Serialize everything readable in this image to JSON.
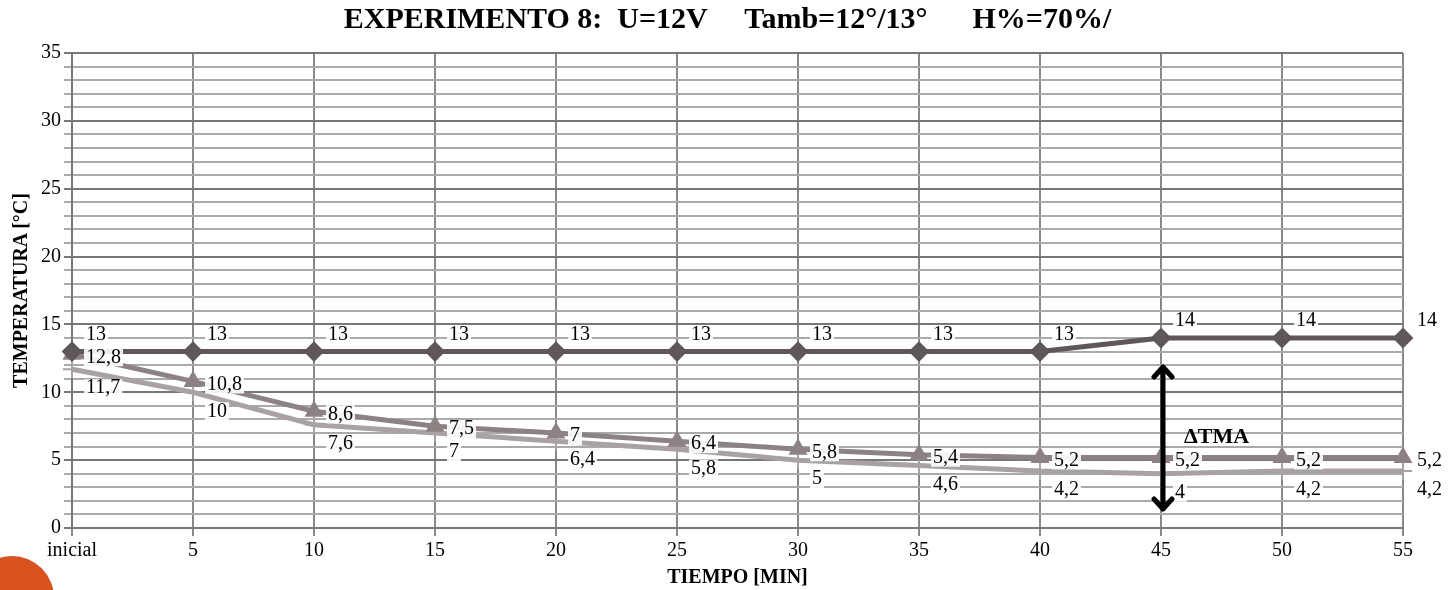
{
  "chart_data": {
    "type": "line",
    "title": "EXPERIMENTO 8:  U=12V     Tamb=12°/13°      H%=70%/",
    "xlabel": "TIEMPO [MIN]",
    "ylabel": "TEMPERATURA [°C]",
    "categories": [
      "inicial",
      "5",
      "10",
      "15",
      "20",
      "25",
      "30",
      "35",
      "40",
      "45",
      "50",
      "55"
    ],
    "series": [
      {
        "color": "#5f5758",
        "marker": "diamond",
        "values": [
          13,
          13,
          13,
          13,
          13,
          13,
          13,
          13,
          13,
          14,
          14,
          14
        ],
        "value_labels": [
          "13",
          "13",
          "13",
          "13",
          "13",
          "13",
          "13",
          "13",
          "13",
          "14",
          "14",
          "14"
        ]
      },
      {
        "color": "#8c8283",
        "marker": "triangle",
        "values": [
          12.8,
          10.8,
          8.6,
          7.5,
          7,
          6.4,
          5.8,
          5.4,
          5.2,
          5.2,
          5.2,
          5.2
        ],
        "value_labels": [
          "12,8",
          "10,8",
          "8,6",
          "7,5",
          "7",
          "6,4",
          "5,8",
          "5,4",
          "5,2",
          "5,2",
          "5,2",
          "5,2"
        ]
      },
      {
        "color": "#a8a2a2",
        "marker": "cross",
        "values": [
          11.7,
          10,
          7.6,
          7,
          6.4,
          5.8,
          5,
          4.6,
          4.2,
          4,
          4.2,
          4.2
        ],
        "value_labels": [
          "11,7",
          "10",
          "7,6",
          "7",
          "6,4",
          "5,8",
          "5",
          "4,6",
          "4,2",
          "4",
          "4,2",
          "4,2"
        ]
      }
    ],
    "ylim": [
      0,
      35
    ],
    "yticks": [
      0,
      {
        "value": 1,
        "label": null
      },
      {
        "value": 2,
        "label": null
      },
      {
        "value": 3,
        "label": null
      },
      {
        "value": 4,
        "label": null
      },
      5,
      {
        "value": 6,
        "label": null
      },
      {
        "value": 7,
        "label": null
      },
      {
        "value": 8,
        "label": null
      },
      {
        "value": 9,
        "label": null
      },
      10,
      {
        "value": 11,
        "label": null
      },
      {
        "value": 12,
        "label": null
      },
      {
        "value": 13,
        "label": null
      },
      {
        "value": 14,
        "label": null
      },
      15,
      {
        "value": 16,
        "label": null
      },
      {
        "value": 17,
        "label": null
      },
      {
        "value": 18,
        "label": null
      },
      {
        "value": 19,
        "label": null
      },
      20,
      {
        "value": 21,
        "label": null
      },
      {
        "value": 22,
        "label": null
      },
      {
        "value": 23,
        "label": null
      },
      {
        "value": 24,
        "label": null
      },
      25,
      {
        "value": 26,
        "label": null
      },
      {
        "value": 27,
        "label": null
      },
      {
        "value": 28,
        "label": null
      },
      {
        "value": 29,
        "label": null
      },
      30,
      {
        "value": 31,
        "label": null
      },
      {
        "value": 32,
        "label": null
      },
      {
        "value": 33,
        "label": null
      },
      {
        "value": 34,
        "label": null
      },
      35
    ],
    "grid": true,
    "legend": false,
    "line_style": "solid",
    "annotations": [
      "ΔTMA"
    ]
  }
}
